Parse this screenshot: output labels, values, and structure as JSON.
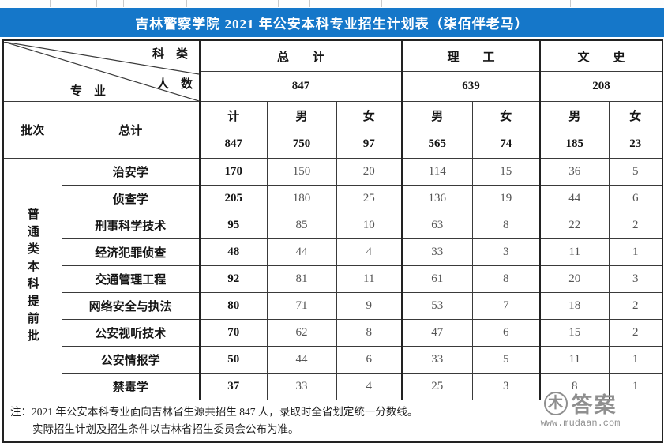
{
  "banner": {
    "title": "吉林警察学院 2021 年公安本科专业招生计划表（柒佰伴老马）"
  },
  "corner": {
    "top_label": "科　类",
    "middle_label": "人　数",
    "bottom_label": "专　业"
  },
  "table": {
    "group_headers": {
      "total": "总　　计",
      "science": "理　　工",
      "liberal_arts": "文　　史"
    },
    "group_totals": {
      "total": "847",
      "science": "639",
      "liberal_arts": "208"
    },
    "batch_header": "批次",
    "total_row_header": "总计",
    "sub_headers": [
      "计",
      "男",
      "女",
      "男",
      "女",
      "男",
      "女"
    ],
    "totals_row": [
      "847",
      "750",
      "97",
      "565",
      "74",
      "185",
      "23"
    ],
    "batch_label": "普通类本科提前批",
    "rows": [
      {
        "name": "治安学",
        "values": [
          "170",
          "150",
          "20",
          "114",
          "15",
          "36",
          "5"
        ]
      },
      {
        "name": "侦查学",
        "values": [
          "205",
          "180",
          "25",
          "136",
          "19",
          "44",
          "6"
        ]
      },
      {
        "name": "刑事科学技术",
        "values": [
          "95",
          "85",
          "10",
          "63",
          "8",
          "22",
          "2"
        ]
      },
      {
        "name": "经济犯罪侦查",
        "values": [
          "48",
          "44",
          "4",
          "33",
          "3",
          "11",
          "1"
        ]
      },
      {
        "name": "交通管理工程",
        "values": [
          "92",
          "81",
          "11",
          "61",
          "8",
          "20",
          "3"
        ]
      },
      {
        "name": "网络安全与执法",
        "values": [
          "80",
          "71",
          "9",
          "53",
          "7",
          "18",
          "2"
        ]
      },
      {
        "name": "公安视听技术",
        "values": [
          "70",
          "62",
          "8",
          "47",
          "6",
          "15",
          "2"
        ]
      },
      {
        "name": "公安情报学",
        "values": [
          "50",
          "44",
          "6",
          "33",
          "5",
          "11",
          "1"
        ]
      },
      {
        "name": "禁毒学",
        "values": [
          "37",
          "33",
          "4",
          "25",
          "3",
          "8",
          "1"
        ]
      }
    ]
  },
  "notes": [
    "注：2021 年公安本科专业面向吉林省生源共招生 847 人，录取时全省划定统一分数线。",
    "实际招生计划及招生条件以吉林省招生委员会公布为准。"
  ],
  "watermark": {
    "logo_char": "木",
    "brand": "答案",
    "url": "www.mudaan.com"
  },
  "colors": {
    "banner_blue": "#1577c9",
    "border_dark": "#222222",
    "bold_text": "#151515",
    "muted_number": "#555555",
    "watermark_gray": "#8f8f8f"
  }
}
